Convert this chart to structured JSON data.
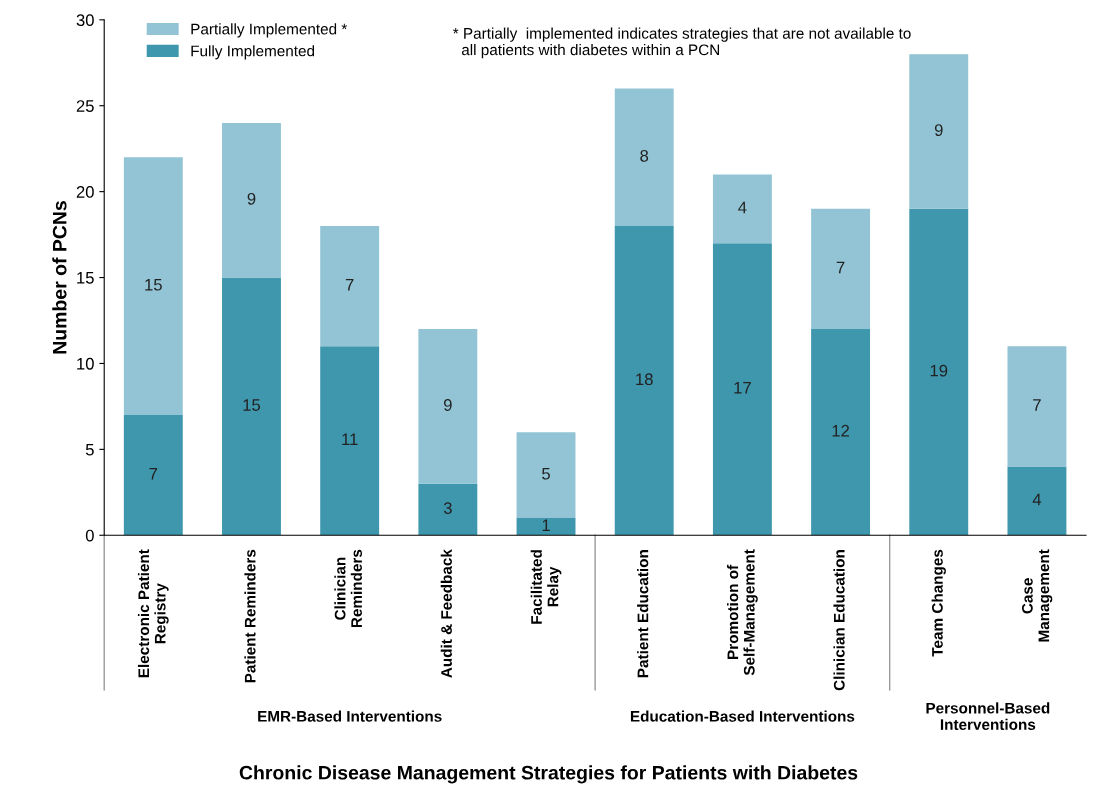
{
  "chart_data": {
    "type": "bar",
    "stacked": true,
    "ylabel": "Number of PCNs",
    "xlabel": "Chronic Disease Management Strategies for Patients with Diabetes",
    "categories": [
      "Electronic Patient\nRegistry",
      "Patient Reminders",
      "Clinician\nReminders",
      "Audit & Feedback",
      "Facilitated\nRelay",
      "Patient Education",
      "Promotion of\nSelf-Management",
      "Clinician Education",
      "Team Changes",
      "Case\nManagement"
    ],
    "series": [
      {
        "name": "Fully Implemented",
        "color": "#3f97ad",
        "values": [
          7,
          15,
          11,
          3,
          1,
          18,
          17,
          12,
          19,
          4
        ]
      },
      {
        "name": "Partially Implemented *",
        "color": "#92c4d5",
        "values": [
          15,
          9,
          7,
          9,
          5,
          8,
          4,
          7,
          9,
          7
        ]
      }
    ],
    "ylim": [
      0,
      30
    ],
    "yticks": [
      0,
      5,
      10,
      15,
      20,
      25,
      30
    ],
    "grid": false,
    "legend": "top left",
    "data_labels": true,
    "annotations": [
      "* Partially  implemented indicates strategies that are not available to\n  all patients with diabetes within a PCN",
      "EMR-Based Interventions",
      "Education-Based Interventions",
      "Personnel-Based\nInterventions"
    ]
  }
}
